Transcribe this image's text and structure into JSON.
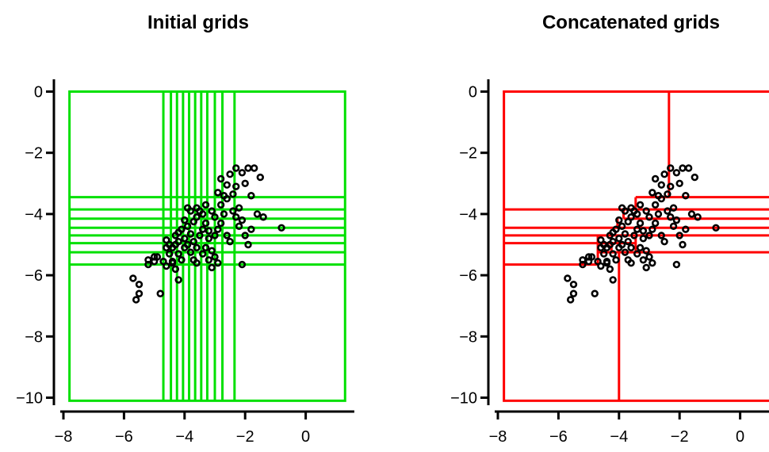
{
  "chart_data": [
    {
      "type": "scatter",
      "title": "Initial grids",
      "xlabel": "",
      "ylabel": "",
      "xlim": [
        -8,
        1.5
      ],
      "ylim": [
        -10,
        0
      ],
      "xticks": [
        -8,
        -6,
        -4,
        -2,
        0
      ],
      "yticks": [
        0,
        -2,
        -4,
        -6,
        -8,
        -10
      ],
      "xtick_labels": [
        "−8",
        "−6",
        "−4",
        "−2",
        "0"
      ],
      "ytick_labels": [
        "0",
        "−2",
        "−4",
        "−6",
        "−8",
        "−10"
      ],
      "grid_color": "#00e000",
      "point_color": "#000000",
      "grid_box": {
        "x": [
          -7.8,
          1.3
        ],
        "y": [
          -10.1,
          0
        ]
      },
      "grid_vlines": [
        -4.7,
        -4.45,
        -4.25,
        -4.05,
        -3.85,
        -3.65,
        -3.45,
        -3.25,
        -3.0,
        -2.75,
        -2.35
      ],
      "grid_hlines": [
        -3.45,
        -3.85,
        -4.15,
        -4.45,
        -4.7,
        -4.95,
        -5.25,
        -5.65
      ],
      "points": []
    },
    {
      "type": "scatter",
      "title": "Concatenated grids",
      "xlabel": "",
      "ylabel": "",
      "xlim": [
        -8,
        1.5
      ],
      "ylim": [
        -10,
        0
      ],
      "xticks": [
        -8,
        -6,
        -4,
        -2,
        0
      ],
      "yticks": [
        0,
        -2,
        -4,
        -6,
        -8,
        -10
      ],
      "xtick_labels": [
        "−8",
        "−6",
        "−4",
        "−2",
        "0"
      ],
      "ytick_labels": [
        "0",
        "−2",
        "−4",
        "−6",
        "−8",
        "−10"
      ],
      "grid_color": "#ff0000",
      "point_color": "#000000",
      "grid_box": {
        "x": [
          -7.8,
          1.3
        ],
        "y": [
          -10.1,
          0
        ]
      },
      "segments": [
        {
          "x1": -2.35,
          "y1": 0,
          "x2": -2.35,
          "y2": -3.45
        },
        {
          "x1": -3.45,
          "y1": -3.45,
          "x2": 1.3,
          "y2": -3.45
        },
        {
          "x1": -3.45,
          "y1": -3.45,
          "x2": -3.45,
          "y2": -3.85
        },
        {
          "x1": -7.8,
          "y1": -3.85,
          "x2": 1.3,
          "y2": -3.85
        },
        {
          "x1": -3.85,
          "y1": -3.85,
          "x2": -3.85,
          "y2": -4.15
        },
        {
          "x1": -3.85,
          "y1": -4.15,
          "x2": 1.3,
          "y2": -4.15
        },
        {
          "x1": -4.05,
          "y1": -4.15,
          "x2": -4.05,
          "y2": -4.45
        },
        {
          "x1": -7.8,
          "y1": -4.45,
          "x2": 1.3,
          "y2": -4.45
        },
        {
          "x1": -7.8,
          "y1": -4.7,
          "x2": 1.3,
          "y2": -4.7
        },
        {
          "x1": -4.7,
          "y1": -4.7,
          "x2": -4.7,
          "y2": -5.65
        },
        {
          "x1": -3.45,
          "y1": -4.7,
          "x2": -3.45,
          "y2": -5.25
        },
        {
          "x1": -7.8,
          "y1": -4.95,
          "x2": -3.45,
          "y2": -4.95
        },
        {
          "x1": -4.25,
          "y1": -4.95,
          "x2": -4.25,
          "y2": -5.25
        },
        {
          "x1": -4.7,
          "y1": -5.25,
          "x2": 1.3,
          "y2": -5.25
        },
        {
          "x1": -7.8,
          "y1": -5.65,
          "x2": -4.7,
          "y2": -5.65
        },
        {
          "x1": -4.0,
          "y1": -5.25,
          "x2": -4.0,
          "y2": -10.1
        }
      ],
      "points": []
    }
  ],
  "shared_points": [
    [
      -5.6,
      -6.8
    ],
    [
      -5.5,
      -6.6
    ],
    [
      -5.7,
      -6.1
    ],
    [
      -5.5,
      -6.3
    ],
    [
      -4.8,
      -6.6
    ],
    [
      -4.2,
      -6.15
    ],
    [
      -5.2,
      -5.5
    ],
    [
      -5.2,
      -5.65
    ],
    [
      -5.0,
      -5.4
    ],
    [
      -4.9,
      -5.4
    ],
    [
      -5.0,
      -5.55
    ],
    [
      -4.7,
      -5.55
    ],
    [
      -4.6,
      -5.7
    ],
    [
      -4.4,
      -5.55
    ],
    [
      -4.3,
      -5.8
    ],
    [
      -4.5,
      -5.3
    ],
    [
      -4.6,
      -5.1
    ],
    [
      -4.4,
      -5.1
    ],
    [
      -4.3,
      -5.0
    ],
    [
      -4.2,
      -5.3
    ],
    [
      -4.1,
      -5.5
    ],
    [
      -4.0,
      -5.1
    ],
    [
      -3.9,
      -5.0
    ],
    [
      -4.0,
      -4.8
    ],
    [
      -4.2,
      -4.9
    ],
    [
      -4.6,
      -4.85
    ],
    [
      -4.5,
      -5.0
    ],
    [
      -4.3,
      -4.7
    ],
    [
      -4.1,
      -4.5
    ],
    [
      -3.9,
      -4.4
    ],
    [
      -3.8,
      -4.65
    ],
    [
      -3.7,
      -4.9
    ],
    [
      -3.6,
      -5.1
    ],
    [
      -3.8,
      -5.25
    ],
    [
      -3.7,
      -5.5
    ],
    [
      -3.6,
      -5.6
    ],
    [
      -3.4,
      -5.3
    ],
    [
      -3.3,
      -5.1
    ],
    [
      -3.2,
      -5.5
    ],
    [
      -3.1,
      -5.75
    ],
    [
      -3.0,
      -5.4
    ],
    [
      -2.9,
      -5.6
    ],
    [
      -3.5,
      -4.7
    ],
    [
      -3.4,
      -4.5
    ],
    [
      -3.3,
      -4.3
    ],
    [
      -3.2,
      -4.55
    ],
    [
      -3.0,
      -4.7
    ],
    [
      -2.9,
      -4.5
    ],
    [
      -3.6,
      -4.1
    ],
    [
      -3.5,
      -3.9
    ],
    [
      -3.3,
      -3.7
    ],
    [
      -3.1,
      -3.9
    ],
    [
      -3.0,
      -4.1
    ],
    [
      -2.8,
      -4.3
    ],
    [
      -2.7,
      -4.0
    ],
    [
      -2.6,
      -4.7
    ],
    [
      -2.5,
      -4.9
    ],
    [
      -2.8,
      -3.7
    ],
    [
      -2.6,
      -3.5
    ],
    [
      -2.4,
      -3.9
    ],
    [
      -2.3,
      -4.1
    ],
    [
      -2.2,
      -4.4
    ],
    [
      -2.1,
      -4.2
    ],
    [
      -2.0,
      -4.7
    ],
    [
      -2.2,
      -3.8
    ],
    [
      -2.4,
      -3.35
    ],
    [
      -2.3,
      -3.1
    ],
    [
      -2.6,
      -3.05
    ],
    [
      -2.8,
      -2.85
    ],
    [
      -2.5,
      -2.7
    ],
    [
      -2.3,
      -2.5
    ],
    [
      -2.1,
      -2.65
    ],
    [
      -1.9,
      -2.5
    ],
    [
      -1.7,
      -2.5
    ],
    [
      -1.5,
      -2.8
    ],
    [
      -2.0,
      -3.0
    ],
    [
      -1.8,
      -3.4
    ],
    [
      -1.6,
      -4.0
    ],
    [
      -1.4,
      -4.1
    ],
    [
      -1.8,
      -4.5
    ],
    [
      -0.8,
      -4.45
    ],
    [
      -3.8,
      -3.9
    ],
    [
      -4.0,
      -4.2
    ],
    [
      -4.2,
      -4.6
    ],
    [
      -3.7,
      -4.25
    ],
    [
      -3.9,
      -3.8
    ],
    [
      -3.6,
      -3.8
    ],
    [
      -2.9,
      -3.3
    ],
    [
      -2.7,
      -3.4
    ],
    [
      -3.2,
      -4.8
    ],
    [
      -2.1,
      -5.65
    ],
    [
      -1.9,
      -5.0
    ],
    [
      -3.4,
      -4.0
    ],
    [
      -4.4,
      -5.6
    ],
    [
      -3.1,
      -5.2
    ]
  ]
}
